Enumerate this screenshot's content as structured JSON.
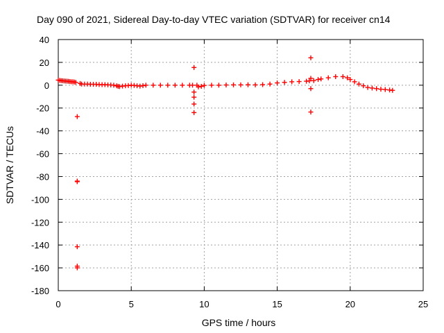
{
  "chart_data": {
    "type": "scatter",
    "title": "Day 090 of 2021, Sidereal Day-to-day VTEC variation (SDTVAR) for receiver cn14",
    "xlabel": "GPS time / hours",
    "ylabel": "SDTVAR / TECUs",
    "xlim": [
      0,
      25
    ],
    "ylim": [
      -180,
      40
    ],
    "xticks": [
      0,
      5,
      10,
      15,
      20,
      25
    ],
    "yticks": [
      40,
      20,
      0,
      -20,
      -40,
      -60,
      -80,
      -100,
      -120,
      -140,
      -160,
      -180
    ],
    "grid": true,
    "marker": "plus",
    "color": "#ff0000",
    "series": [
      {
        "name": "SDTVAR",
        "points": [
          [
            0.0,
            4.5
          ],
          [
            0.1,
            4.2
          ],
          [
            0.2,
            4.0
          ],
          [
            0.3,
            3.9
          ],
          [
            0.4,
            3.7
          ],
          [
            0.5,
            3.6
          ],
          [
            0.6,
            3.5
          ],
          [
            0.7,
            3.4
          ],
          [
            0.8,
            3.2
          ],
          [
            0.9,
            3.0
          ],
          [
            1.0,
            3.0
          ],
          [
            1.1,
            2.8
          ],
          [
            1.2,
            2.5
          ],
          [
            1.3,
            -27.5
          ],
          [
            1.3,
            -84.0
          ],
          [
            1.3,
            -84.5
          ],
          [
            1.3,
            -141.5
          ],
          [
            1.3,
            -158.5
          ],
          [
            1.3,
            -160.0
          ],
          [
            1.5,
            1.5
          ],
          [
            1.6,
            1.0
          ],
          [
            1.8,
            1.0
          ],
          [
            2.0,
            1.0
          ],
          [
            2.2,
            0.8
          ],
          [
            2.4,
            0.8
          ],
          [
            2.6,
            0.8
          ],
          [
            2.8,
            0.6
          ],
          [
            3.0,
            0.5
          ],
          [
            3.2,
            0.5
          ],
          [
            3.4,
            0.3
          ],
          [
            3.6,
            0.2
          ],
          [
            3.8,
            0.0
          ],
          [
            4.0,
            -0.5
          ],
          [
            4.1,
            -1.0
          ],
          [
            4.2,
            -1.2
          ],
          [
            4.4,
            -0.8
          ],
          [
            4.6,
            -0.5
          ],
          [
            4.8,
            -0.3
          ],
          [
            5.0,
            0.0
          ],
          [
            5.2,
            -0.2
          ],
          [
            5.4,
            -0.5
          ],
          [
            5.6,
            -0.8
          ],
          [
            5.8,
            -0.4
          ],
          [
            6.0,
            0.0
          ],
          [
            6.5,
            0.0
          ],
          [
            7.0,
            0.0
          ],
          [
            7.5,
            0.0
          ],
          [
            8.0,
            0.0
          ],
          [
            8.5,
            0.0
          ],
          [
            9.0,
            0.0
          ],
          [
            9.2,
            0.0
          ],
          [
            9.3,
            15.5
          ],
          [
            9.3,
            -6.0
          ],
          [
            9.3,
            -10.5
          ],
          [
            9.3,
            -16.5
          ],
          [
            9.3,
            -24.0
          ],
          [
            9.5,
            0.0
          ],
          [
            9.6,
            -1.5
          ],
          [
            9.8,
            -1.0
          ],
          [
            10.0,
            -0.2
          ],
          [
            10.5,
            0.0
          ],
          [
            11.0,
            0.0
          ],
          [
            11.5,
            0.2
          ],
          [
            12.0,
            0.3
          ],
          [
            12.5,
            0.3
          ],
          [
            13.0,
            0.4
          ],
          [
            13.5,
            0.3
          ],
          [
            14.0,
            0.5
          ],
          [
            14.5,
            1.0
          ],
          [
            15.0,
            2.0
          ],
          [
            15.5,
            2.5
          ],
          [
            16.0,
            3.0
          ],
          [
            16.5,
            3.2
          ],
          [
            17.0,
            3.5
          ],
          [
            17.2,
            3.8
          ],
          [
            17.3,
            24.0
          ],
          [
            17.3,
            6.0
          ],
          [
            17.3,
            -3.0
          ],
          [
            17.3,
            -23.5
          ],
          [
            17.5,
            4.0
          ],
          [
            17.8,
            5.0
          ],
          [
            18.0,
            5.5
          ],
          [
            18.5,
            6.5
          ],
          [
            19.0,
            7.5
          ],
          [
            19.5,
            7.5
          ],
          [
            19.8,
            6.5
          ],
          [
            20.0,
            5.0
          ],
          [
            20.3,
            3.0
          ],
          [
            20.6,
            1.0
          ],
          [
            20.9,
            -0.5
          ],
          [
            21.2,
            -2.0
          ],
          [
            21.5,
            -2.5
          ],
          [
            21.8,
            -3.0
          ],
          [
            22.1,
            -3.5
          ],
          [
            22.4,
            -3.8
          ],
          [
            22.7,
            -4.2
          ],
          [
            22.9,
            -4.5
          ]
        ]
      }
    ]
  }
}
